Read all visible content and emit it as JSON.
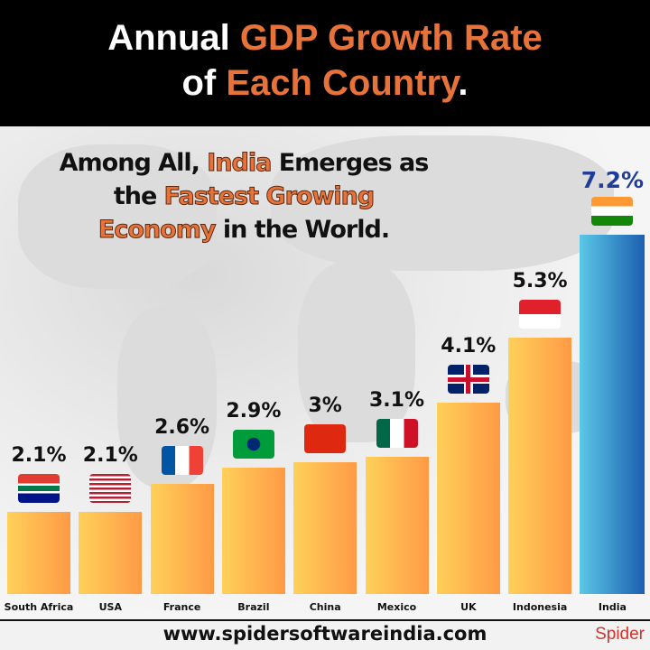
{
  "header": {
    "line1_a": "Annual ",
    "line1_b": "GDP Growth Rate",
    "line2_a": "of ",
    "line2_b": "Each Country",
    "line2_c": "."
  },
  "subtitle": {
    "p1": "Among All, ",
    "p2": "India",
    "p3": " Emerges as",
    "p4": "the ",
    "p5": "Fastest Growing",
    "p6": "Economy",
    "p7": " in the World."
  },
  "chart_data": {
    "type": "bar",
    "categories": [
      "South Africa",
      "USA",
      "France",
      "Brazil",
      "China",
      "Mexico",
      "UK",
      "Indonesia",
      "India"
    ],
    "values": [
      2.1,
      2.1,
      2.6,
      2.9,
      3,
      3.1,
      4.1,
      5.3,
      7.2
    ],
    "labels": [
      "2.1%",
      "2.1%",
      "2.6%",
      "2.9%",
      "3%",
      "3.1%",
      "4.1%",
      "5.3%",
      "7.2%"
    ],
    "unit": "%",
    "colors": {
      "bars": "#ffb54f",
      "highlight": "#1d5fb0",
      "accent": "#e8733a"
    }
  },
  "footer": {
    "url": "www.spidersoftwareindia.com",
    "logo": "Spider"
  }
}
